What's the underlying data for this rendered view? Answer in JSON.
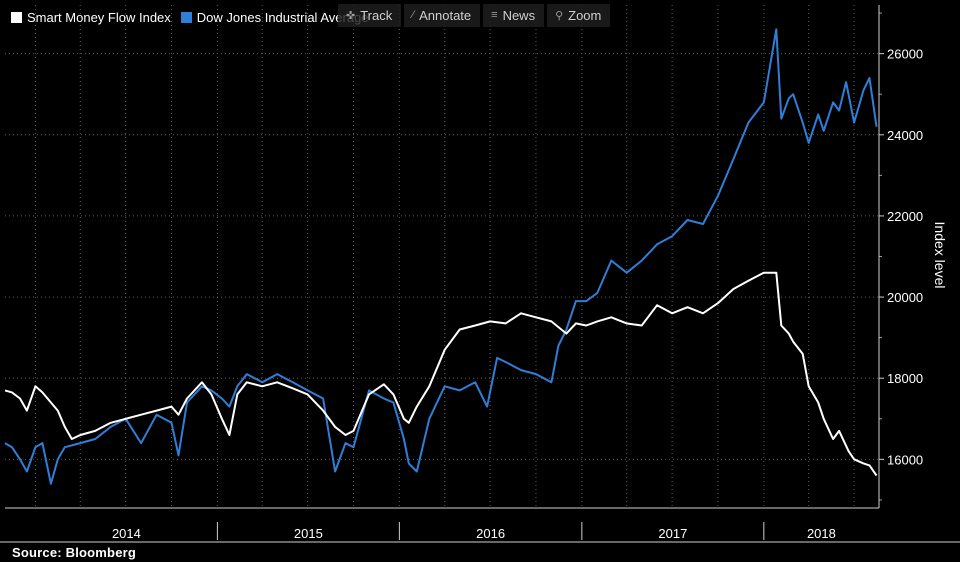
{
  "legend": {
    "smart_money_label": "Smart Money Flow Index",
    "dow_label": "Dow Jones Industrial Average"
  },
  "toolbar": {
    "track_label": "Track",
    "annotate_label": "Annotate",
    "news_label": "News",
    "zoom_label": "Zoom"
  },
  "source_text": "Source:  Bloomberg",
  "colors": {
    "background": "#000000",
    "smart_money": "#ffffff",
    "dow": "#2f7ed8",
    "grid": "#5a5a5a"
  },
  "chart_data": {
    "type": "line",
    "title": "",
    "xlabel": "",
    "ylabel": "Index level",
    "ylim": [
      14800,
      27200
    ],
    "xlim": [
      "2013-11-01",
      "2018-08-20"
    ],
    "yticks": [
      16000,
      18000,
      20000,
      22000,
      24000,
      26000
    ],
    "year_labels": [
      "2014",
      "2015",
      "2016",
      "2017",
      "2018"
    ],
    "grid": true,
    "legend_position": "top-left",
    "series": [
      {
        "name": "Smart Money Flow Index",
        "color": "#ffffff",
        "points": [
          [
            "2013-11-01",
            17700
          ],
          [
            "2013-11-15",
            17650
          ],
          [
            "2013-12-01",
            17500
          ],
          [
            "2013-12-15",
            17200
          ],
          [
            "2014-01-01",
            17800
          ],
          [
            "2014-01-15",
            17650
          ],
          [
            "2014-02-01",
            17400
          ],
          [
            "2014-02-15",
            17200
          ],
          [
            "2014-03-01",
            16800
          ],
          [
            "2014-03-15",
            16500
          ],
          [
            "2014-04-01",
            16600
          ],
          [
            "2014-05-01",
            16700
          ],
          [
            "2014-06-01",
            16900
          ],
          [
            "2014-07-01",
            17000
          ],
          [
            "2014-08-01",
            17100
          ],
          [
            "2014-09-01",
            17200
          ],
          [
            "2014-10-01",
            17300
          ],
          [
            "2014-10-15",
            17100
          ],
          [
            "2014-11-01",
            17500
          ],
          [
            "2014-12-01",
            17900
          ],
          [
            "2014-12-20",
            17600
          ],
          [
            "2015-01-10",
            17000
          ],
          [
            "2015-01-25",
            16600
          ],
          [
            "2015-02-10",
            17600
          ],
          [
            "2015-03-01",
            17900
          ],
          [
            "2015-04-01",
            17800
          ],
          [
            "2015-05-01",
            17900
          ],
          [
            "2015-06-01",
            17750
          ],
          [
            "2015-07-01",
            17600
          ],
          [
            "2015-08-01",
            17200
          ],
          [
            "2015-08-25",
            16800
          ],
          [
            "2015-09-15",
            16600
          ],
          [
            "2015-10-01",
            16700
          ],
          [
            "2015-11-01",
            17600
          ],
          [
            "2015-12-01",
            17850
          ],
          [
            "2015-12-20",
            17600
          ],
          [
            "2016-01-10",
            17000
          ],
          [
            "2016-01-20",
            16900
          ],
          [
            "2016-02-05",
            17300
          ],
          [
            "2016-03-01",
            17800
          ],
          [
            "2016-04-01",
            18700
          ],
          [
            "2016-05-01",
            19200
          ],
          [
            "2016-06-01",
            19300
          ],
          [
            "2016-07-01",
            19400
          ],
          [
            "2016-08-01",
            19350
          ],
          [
            "2016-09-01",
            19600
          ],
          [
            "2016-10-01",
            19500
          ],
          [
            "2016-11-01",
            19400
          ],
          [
            "2016-12-01",
            19100
          ],
          [
            "2016-12-20",
            19350
          ],
          [
            "2017-01-10",
            19300
          ],
          [
            "2017-02-01",
            19400
          ],
          [
            "2017-03-01",
            19500
          ],
          [
            "2017-04-01",
            19350
          ],
          [
            "2017-05-01",
            19300
          ],
          [
            "2017-06-01",
            19800
          ],
          [
            "2017-07-01",
            19600
          ],
          [
            "2017-08-01",
            19750
          ],
          [
            "2017-09-01",
            19600
          ],
          [
            "2017-10-01",
            19850
          ],
          [
            "2017-11-01",
            20200
          ],
          [
            "2017-12-01",
            20400
          ],
          [
            "2018-01-01",
            20600
          ],
          [
            "2018-01-26",
            20600
          ],
          [
            "2018-02-05",
            19300
          ],
          [
            "2018-02-20",
            19100
          ],
          [
            "2018-03-01",
            18900
          ],
          [
            "2018-03-20",
            18600
          ],
          [
            "2018-04-01",
            17800
          ],
          [
            "2018-04-20",
            17400
          ],
          [
            "2018-05-01",
            17000
          ],
          [
            "2018-05-20",
            16500
          ],
          [
            "2018-06-01",
            16700
          ],
          [
            "2018-06-20",
            16200
          ],
          [
            "2018-07-01",
            16000
          ],
          [
            "2018-07-20",
            15900
          ],
          [
            "2018-08-01",
            15850
          ],
          [
            "2018-08-15",
            15600
          ]
        ]
      },
      {
        "name": "Dow Jones Industrial Average",
        "color": "#2f7ed8",
        "points": [
          [
            "2013-11-01",
            16400
          ],
          [
            "2013-11-15",
            16300
          ],
          [
            "2013-12-01",
            16000
          ],
          [
            "2013-12-15",
            15700
          ],
          [
            "2014-01-01",
            16300
          ],
          [
            "2014-01-15",
            16400
          ],
          [
            "2014-02-01",
            15400
          ],
          [
            "2014-02-15",
            16000
          ],
          [
            "2014-03-01",
            16300
          ],
          [
            "2014-04-01",
            16400
          ],
          [
            "2014-05-01",
            16500
          ],
          [
            "2014-06-01",
            16800
          ],
          [
            "2014-07-01",
            17000
          ],
          [
            "2014-08-01",
            16400
          ],
          [
            "2014-09-01",
            17100
          ],
          [
            "2014-10-01",
            16900
          ],
          [
            "2014-10-15",
            16100
          ],
          [
            "2014-11-01",
            17400
          ],
          [
            "2014-12-01",
            17800
          ],
          [
            "2014-12-20",
            17700
          ],
          [
            "2015-01-10",
            17500
          ],
          [
            "2015-01-25",
            17300
          ],
          [
            "2015-02-10",
            17800
          ],
          [
            "2015-03-01",
            18100
          ],
          [
            "2015-04-01",
            17900
          ],
          [
            "2015-05-01",
            18100
          ],
          [
            "2015-06-01",
            17900
          ],
          [
            "2015-07-01",
            17700
          ],
          [
            "2015-08-01",
            17500
          ],
          [
            "2015-08-25",
            15700
          ],
          [
            "2015-09-15",
            16400
          ],
          [
            "2015-10-01",
            16300
          ],
          [
            "2015-11-01",
            17700
          ],
          [
            "2015-12-01",
            17500
          ],
          [
            "2015-12-20",
            17400
          ],
          [
            "2016-01-10",
            16500
          ],
          [
            "2016-01-20",
            15900
          ],
          [
            "2016-02-05",
            15700
          ],
          [
            "2016-03-01",
            17000
          ],
          [
            "2016-04-01",
            17800
          ],
          [
            "2016-05-01",
            17700
          ],
          [
            "2016-06-01",
            17900
          ],
          [
            "2016-06-25",
            17300
          ],
          [
            "2016-07-15",
            18500
          ],
          [
            "2016-08-01",
            18400
          ],
          [
            "2016-09-01",
            18200
          ],
          [
            "2016-10-01",
            18100
          ],
          [
            "2016-11-01",
            17900
          ],
          [
            "2016-11-15",
            18800
          ],
          [
            "2016-12-01",
            19200
          ],
          [
            "2016-12-20",
            19900
          ],
          [
            "2017-01-10",
            19900
          ],
          [
            "2017-02-01",
            20100
          ],
          [
            "2017-03-01",
            20900
          ],
          [
            "2017-04-01",
            20600
          ],
          [
            "2017-05-01",
            20900
          ],
          [
            "2017-06-01",
            21300
          ],
          [
            "2017-07-01",
            21500
          ],
          [
            "2017-08-01",
            21900
          ],
          [
            "2017-09-01",
            21800
          ],
          [
            "2017-10-01",
            22500
          ],
          [
            "2017-11-01",
            23400
          ],
          [
            "2017-12-01",
            24300
          ],
          [
            "2018-01-01",
            24800
          ],
          [
            "2018-01-26",
            26600
          ],
          [
            "2018-02-05",
            24400
          ],
          [
            "2018-02-20",
            24900
          ],
          [
            "2018-03-01",
            25000
          ],
          [
            "2018-03-20",
            24300
          ],
          [
            "2018-04-01",
            23800
          ],
          [
            "2018-04-20",
            24500
          ],
          [
            "2018-05-01",
            24100
          ],
          [
            "2018-05-20",
            24800
          ],
          [
            "2018-06-01",
            24600
          ],
          [
            "2018-06-15",
            25300
          ],
          [
            "2018-07-01",
            24300
          ],
          [
            "2018-07-20",
            25100
          ],
          [
            "2018-08-01",
            25400
          ],
          [
            "2018-08-15",
            24200
          ]
        ]
      }
    ]
  }
}
